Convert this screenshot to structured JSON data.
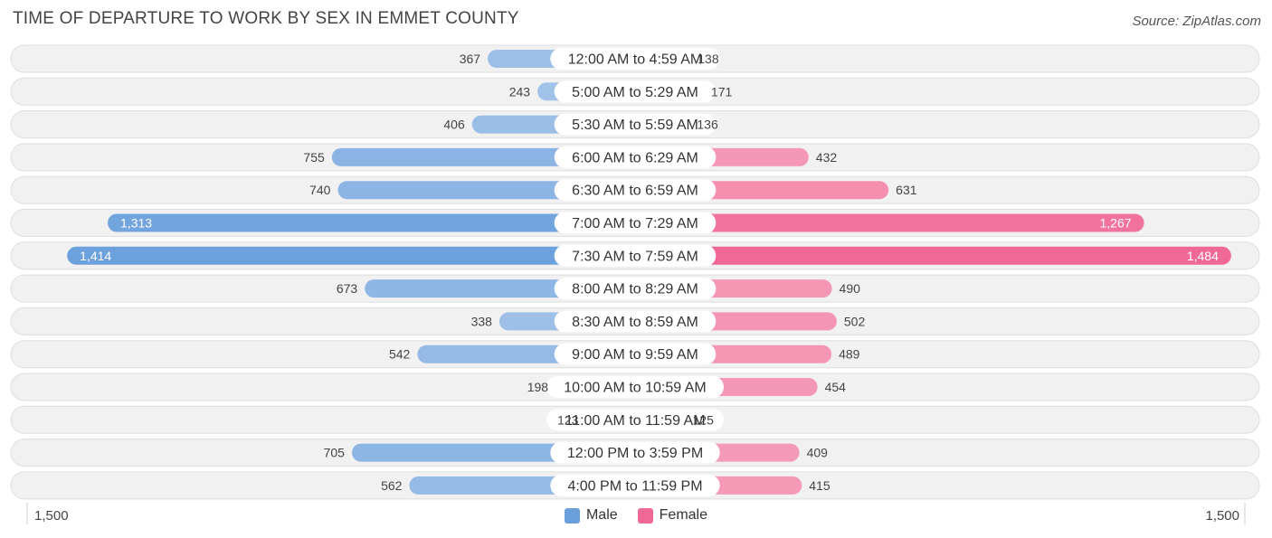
{
  "chart_data": {
    "type": "bar",
    "orientation": "horizontal-diverging",
    "title": "TIME OF DEPARTURE TO WORK BY SEX IN EMMET COUNTY",
    "source": "Source: ZipAtlas.com",
    "categories": [
      "12:00 AM to 4:59 AM",
      "5:00 AM to 5:29 AM",
      "5:30 AM to 5:59 AM",
      "6:00 AM to 6:29 AM",
      "6:30 AM to 6:59 AM",
      "7:00 AM to 7:29 AM",
      "7:30 AM to 7:59 AM",
      "8:00 AM to 8:29 AM",
      "8:30 AM to 8:59 AM",
      "9:00 AM to 9:59 AM",
      "10:00 AM to 10:59 AM",
      "11:00 AM to 11:59 AM",
      "12:00 PM to 3:59 PM",
      "4:00 PM to 11:59 PM"
    ],
    "series": [
      {
        "name": "Male",
        "color": "#6a9fdc",
        "values": [
          367,
          243,
          406,
          755,
          740,
          1313,
          1414,
          673,
          338,
          542,
          198,
          123,
          705,
          562
        ],
        "labels": [
          "367",
          "243",
          "406",
          "755",
          "740",
          "1,313",
          "1,414",
          "673",
          "338",
          "542",
          "198",
          "123",
          "705",
          "562"
        ]
      },
      {
        "name": "Female",
        "color": "#f06895",
        "values": [
          138,
          171,
          136,
          432,
          631,
          1267,
          1484,
          490,
          502,
          489,
          454,
          125,
          409,
          415
        ],
        "labels": [
          "138",
          "171",
          "136",
          "432",
          "631",
          "1,267",
          "1,484",
          "490",
          "502",
          "489",
          "454",
          "125",
          "409",
          "415"
        ]
      }
    ],
    "xlim": [
      -1500,
      1500
    ],
    "axis_labels": {
      "left": "1,500",
      "right": "1,500"
    },
    "legend": {
      "position": "bottom-center"
    },
    "grid": false
  }
}
